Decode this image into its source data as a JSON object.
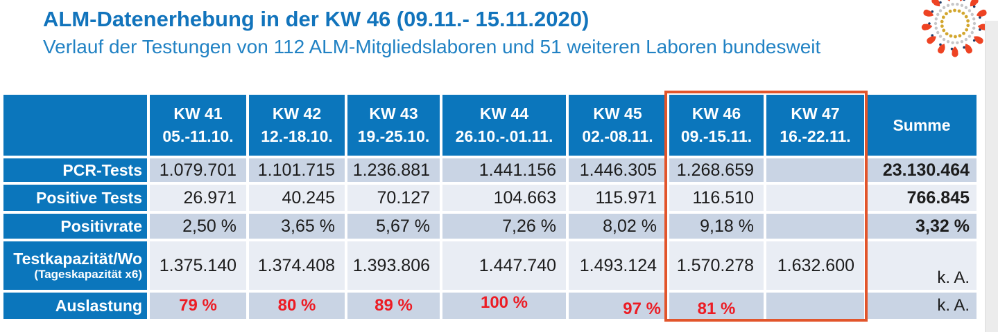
{
  "header": {
    "title": "ALM-Datenerhebung in der KW 46 (09.11.- 15.11.2020)",
    "subtitle": "Verlauf der Testungen von 112 ALM-Mitgliedslaboren und 51 weiteren Laboren bundesweit"
  },
  "colors": {
    "table_blue": "#0B76BC",
    "row_shaded": "#C9D4E4",
    "row_light": "#E9EDF4",
    "highlight_border": "#E2552B",
    "red_value": "#EC1C24",
    "title_blue": "#1274BC",
    "subtitle_blue": "#2182C4",
    "virus_red": "#EE4323",
    "virus_gold": "#D2A62E",
    "virus_gray": "#C6C6C8",
    "virus_navy": "#1E3A67"
  },
  "icon": {
    "name": "coronavirus-icon"
  },
  "table": {
    "columns": [
      {
        "week": "",
        "dates": ""
      },
      {
        "week": "KW 41",
        "dates": "05.-11.10."
      },
      {
        "week": "KW 42",
        "dates": "12.-18.10."
      },
      {
        "week": "KW 43",
        "dates": "19.-25.10."
      },
      {
        "week": "KW 44",
        "dates": "26.10.-.01.11."
      },
      {
        "week": "KW 45",
        "dates": "02.-08.11."
      },
      {
        "week": "KW 46",
        "dates": "09.-15.11."
      },
      {
        "week": "KW 47",
        "dates": "16.-22.11."
      }
    ],
    "summe_label": "Summe",
    "rows": [
      {
        "label": "PCR-Tests",
        "sublabel": "",
        "values": [
          "1.079.701",
          "1.101.715",
          "1.236.881",
          "1.441.156",
          "1.446.305",
          "1.268.659",
          ""
        ],
        "summe": "23.130.464"
      },
      {
        "label": "Positive Tests",
        "sublabel": "",
        "values": [
          "26.971",
          "40.245",
          "70.127",
          "104.663",
          "115.971",
          "116.510",
          ""
        ],
        "summe": "766.845"
      },
      {
        "label": "Positivrate",
        "sublabel": "",
        "values": [
          "2,50 %",
          "3,65 %",
          "5,67 %",
          "7,26 %",
          "8,02 %",
          "9,18 %",
          ""
        ],
        "summe": "3,32 %"
      },
      {
        "label": "Testkapazität/Wo",
        "sublabel": "(Tageskapazität x6)",
        "values": [
          "1.375.140",
          "1.374.408",
          "1.393.806",
          "1.447.740",
          "1.493.124",
          "1.570.278",
          "1.632.600"
        ],
        "summe": "k. A."
      },
      {
        "label": "Auslastung",
        "sublabel": "",
        "values": [
          "79 %",
          "80 %",
          "89 %",
          "100 %",
          "97 %",
          "81 %",
          ""
        ],
        "summe": "k. A."
      }
    ],
    "highlighted_weeks": "KW 46 und KW 47"
  }
}
